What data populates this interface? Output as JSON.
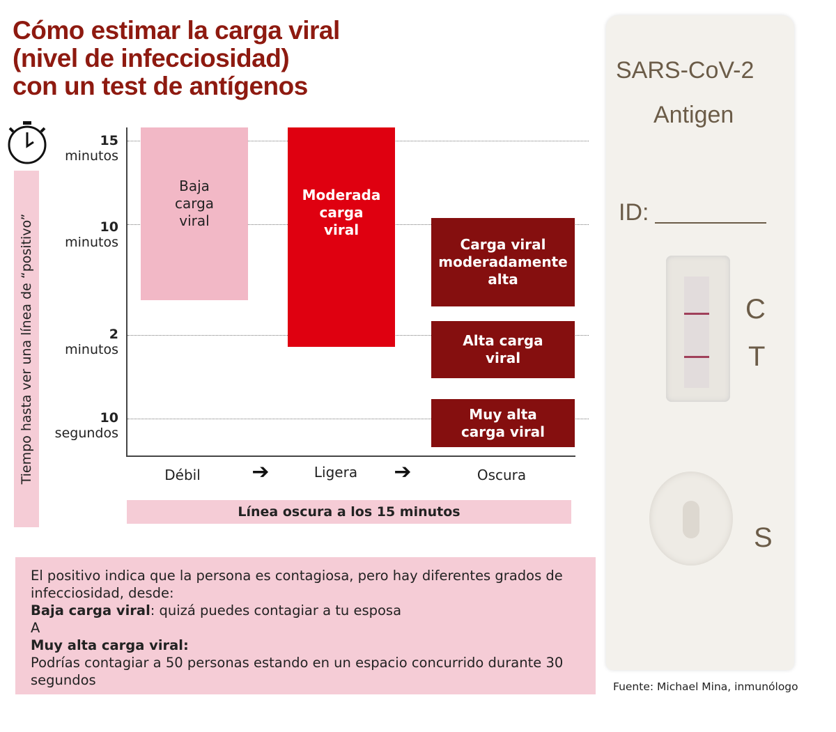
{
  "title": {
    "line1": "Cómo estimar la carga viral",
    "line2": "(nivel de infecciosidad)",
    "line3": "con un test de antígenos"
  },
  "y_axis_label": "Tiempo hasta ver una línea de “positivo”",
  "y_ticks": [
    {
      "value": "15",
      "unit": "minutos"
    },
    {
      "value": "10",
      "unit": "minutos"
    },
    {
      "value": "2",
      "unit": "minutos"
    },
    {
      "value": "10",
      "unit": "segundos"
    }
  ],
  "x_labels": [
    "Débil",
    "Ligera",
    "Oscura"
  ],
  "x_axis_label": "Línea oscura a los 15 minutos",
  "boxes": [
    "Baja carga viral",
    "Moderada carga viral",
    "Carga viral moderadamente alta",
    "Alta carga viral",
    "Muy alta carga viral"
  ],
  "note": {
    "intro": "El positivo indica que la persona es contagiosa, pero hay diferentes grados de infecciosidad, desde:",
    "low_label": "Baja carga viral",
    "low_text": ": quizá puedes contagiar a tu esposa",
    "a": "A",
    "high_label": "Muy alta carga viral:",
    "high_text": "Podrías contagiar a 50 personas estando en un espacio concurrido durante 30 segundos"
  },
  "device": {
    "line1": "SARS-CoV-2",
    "line2": "Antigen",
    "id": "ID:",
    "c": "C",
    "t": "T",
    "s": "S"
  },
  "source": "Fuente: Michael Mina, inmunólogo",
  "colors": {
    "title": "#8e1a10",
    "light": "#f2b8c6",
    "mid": "#df0010",
    "dark": "#850f0f",
    "panel": "#f5ccd6"
  }
}
